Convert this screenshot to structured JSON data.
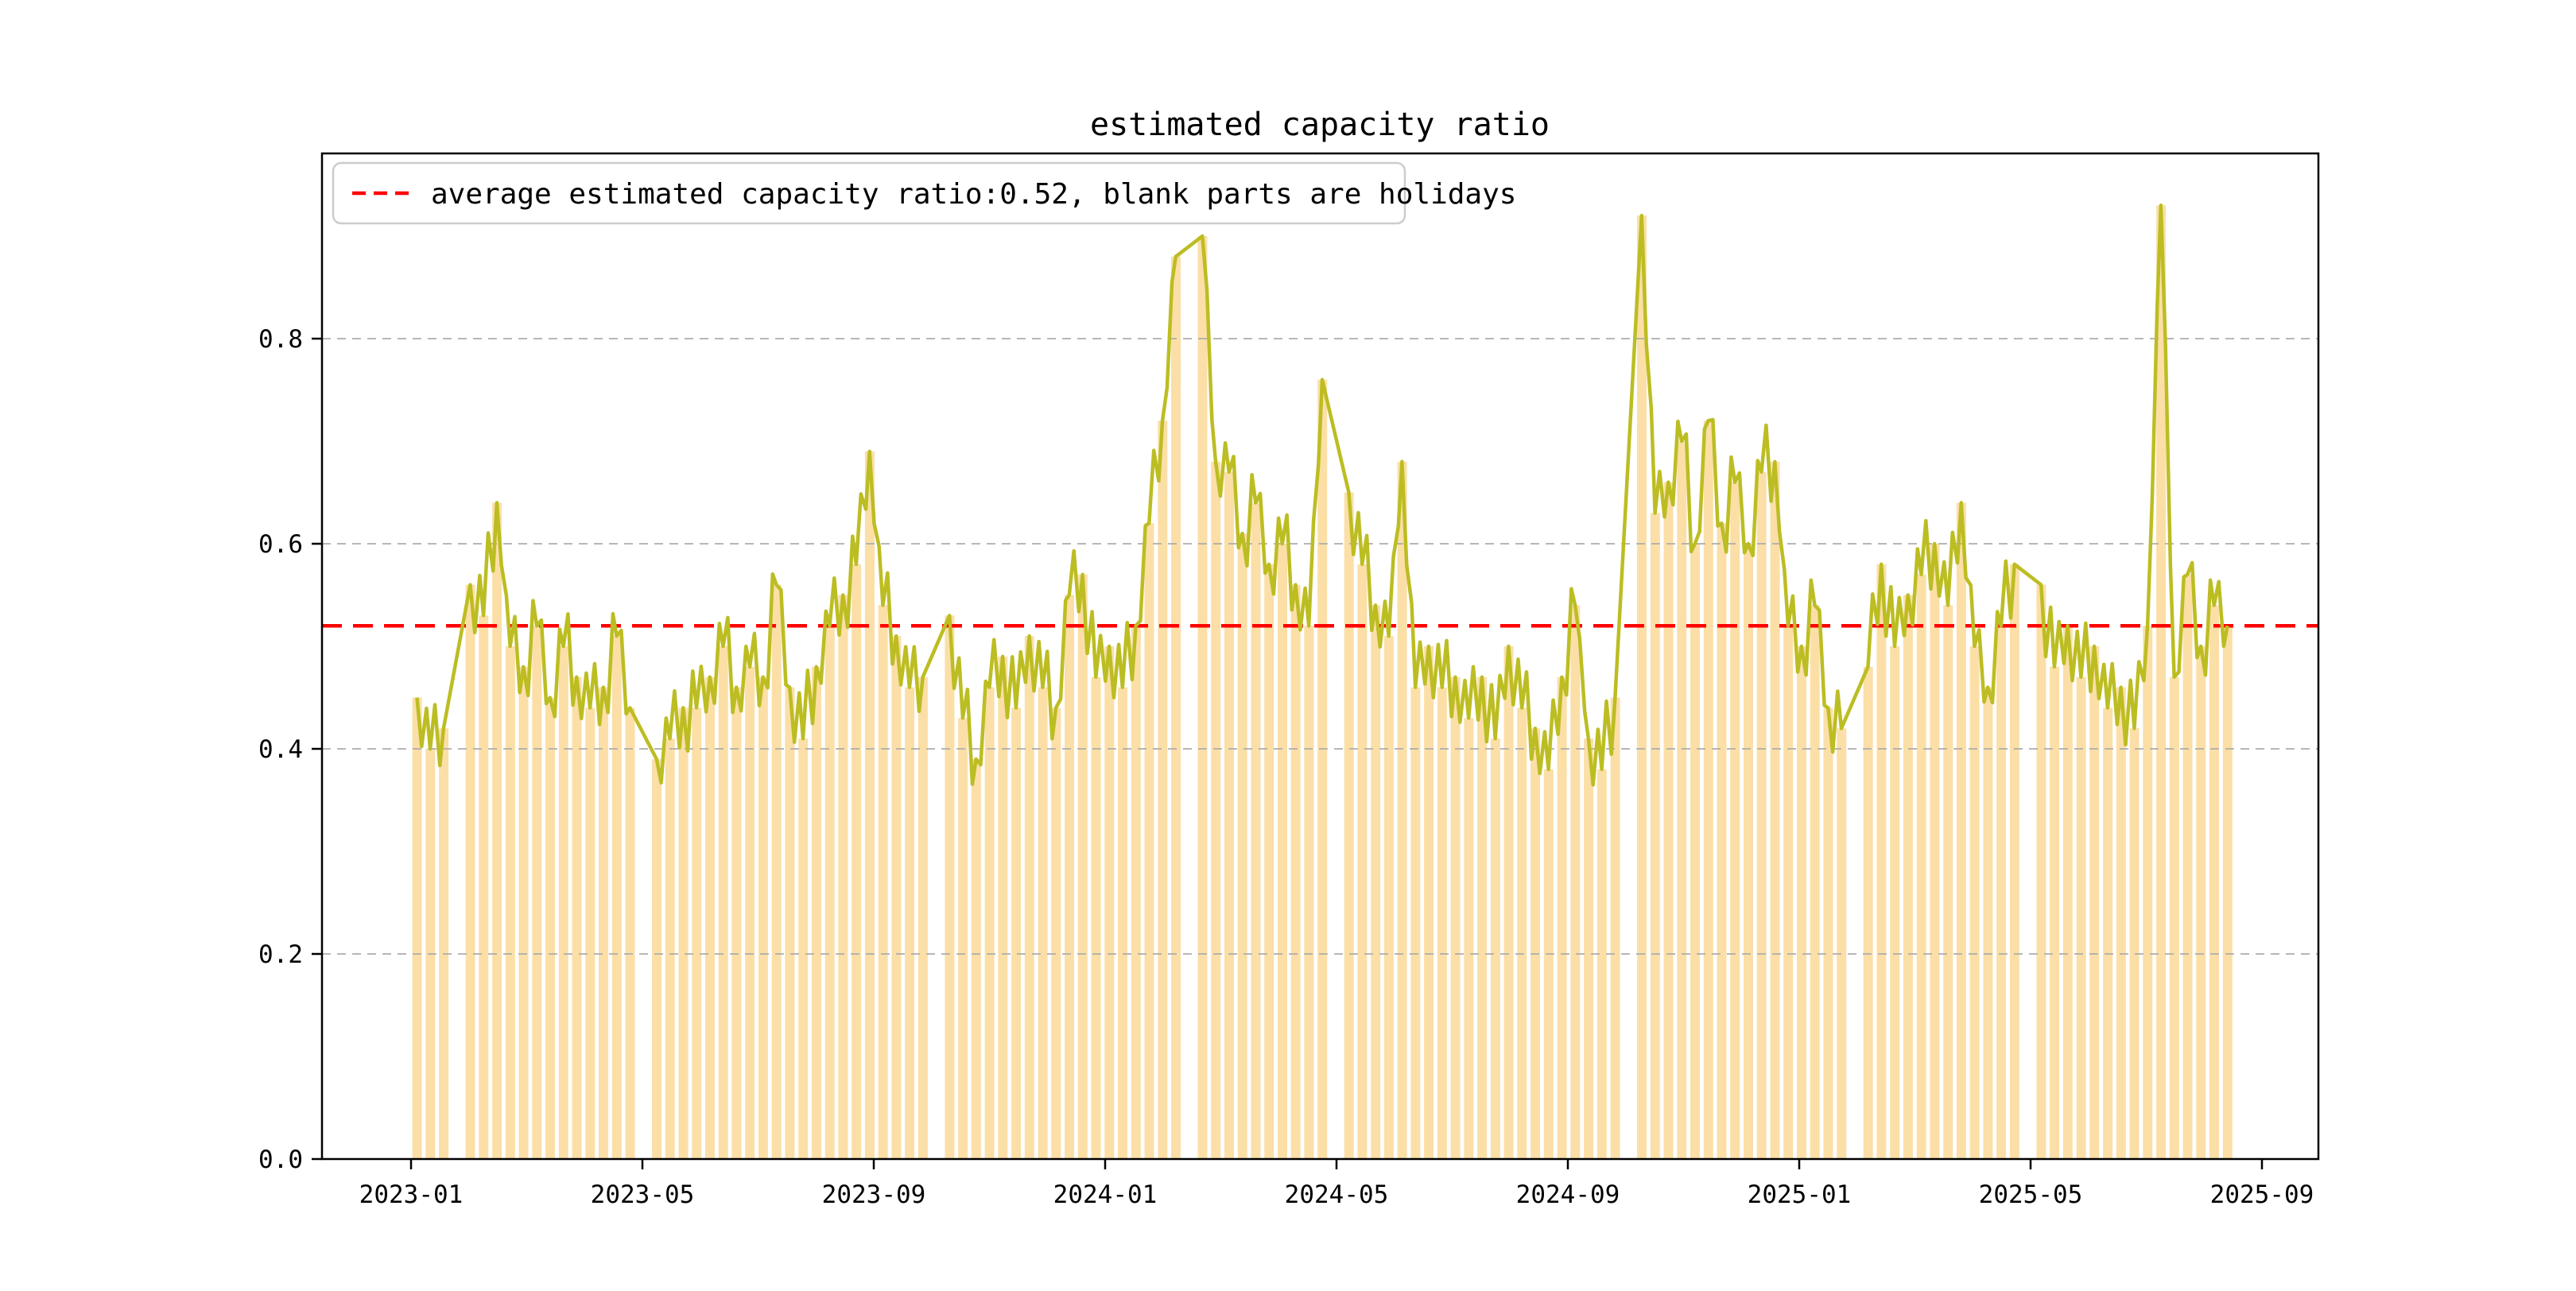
{
  "chart_data": {
    "type": "bar+line",
    "title": "estimated capacity ratio",
    "legend": {
      "label": "average estimated capacity ratio:0.52, blank parts are holidays",
      "sample_style": "dashed",
      "sample_color": "#ff0000"
    },
    "average_value": 0.52,
    "xlabel": "",
    "ylabel": "",
    "ylim": [
      0.0,
      0.98
    ],
    "yticks": [
      "0.0",
      "0.2",
      "0.4",
      "0.6",
      "0.8"
    ],
    "xticks": [
      "2023-01",
      "2023-05",
      "2023-09",
      "2024-01",
      "2024-05",
      "2024-09",
      "2025-01",
      "2025-05",
      "2025-09"
    ],
    "grid": "horizontal-dashed",
    "legend_position": "upper-left",
    "colors": {
      "bar": "#fbdfa7",
      "line": "#bcbd22",
      "average_line": "#ff0000",
      "grid": "#adadad",
      "axis": "#000000"
    },
    "weeks_note_holidays_are_null": true,
    "weeks": [
      [
        "2023-01-02",
        0.45
      ],
      [
        "2023-01-09",
        0.4
      ],
      [
        "2023-01-16",
        0.42
      ],
      [
        "2023-01-23",
        null
      ],
      [
        "2023-01-30",
        0.56
      ],
      [
        "2023-02-06",
        0.53
      ],
      [
        "2023-02-13",
        0.64
      ],
      [
        "2023-02-20",
        0.5
      ],
      [
        "2023-02-27",
        0.48
      ],
      [
        "2023-03-06",
        0.52
      ],
      [
        "2023-03-13",
        0.45
      ],
      [
        "2023-03-20",
        0.5
      ],
      [
        "2023-03-27",
        0.47
      ],
      [
        "2023-04-03",
        0.44
      ],
      [
        "2023-04-10",
        0.46
      ],
      [
        "2023-04-17",
        0.51
      ],
      [
        "2023-04-24",
        0.44
      ],
      [
        "2023-05-01",
        null
      ],
      [
        "2023-05-08",
        0.39
      ],
      [
        "2023-05-15",
        0.41
      ],
      [
        "2023-05-22",
        0.44
      ],
      [
        "2023-05-29",
        0.44
      ],
      [
        "2023-06-05",
        0.47
      ],
      [
        "2023-06-12",
        0.5
      ],
      [
        "2023-06-19",
        0.46
      ],
      [
        "2023-06-26",
        0.48
      ],
      [
        "2023-07-03",
        0.47
      ],
      [
        "2023-07-10",
        0.56
      ],
      [
        "2023-07-17",
        0.46
      ],
      [
        "2023-07-24",
        0.41
      ],
      [
        "2023-07-31",
        0.48
      ],
      [
        "2023-08-07",
        0.52
      ],
      [
        "2023-08-14",
        0.55
      ],
      [
        "2023-08-21",
        0.58
      ],
      [
        "2023-08-28",
        0.69
      ],
      [
        "2023-09-04",
        0.54
      ],
      [
        "2023-09-11",
        0.51
      ],
      [
        "2023-09-18",
        0.46
      ],
      [
        "2023-09-25",
        0.47
      ],
      [
        "2023-10-02",
        null
      ],
      [
        "2023-10-09",
        0.53
      ],
      [
        "2023-10-16",
        0.43
      ],
      [
        "2023-10-23",
        0.39
      ],
      [
        "2023-10-30",
        0.46
      ],
      [
        "2023-11-06",
        0.49
      ],
      [
        "2023-11-13",
        0.44
      ],
      [
        "2023-11-20",
        0.51
      ],
      [
        "2023-11-27",
        0.46
      ],
      [
        "2023-12-04",
        0.44
      ],
      [
        "2023-12-11",
        0.55
      ],
      [
        "2023-12-18",
        0.57
      ],
      [
        "2023-12-25",
        0.47
      ],
      [
        "2024-01-01",
        0.5
      ],
      [
        "2024-01-08",
        0.46
      ],
      [
        "2024-01-15",
        0.52
      ],
      [
        "2024-01-22",
        0.62
      ],
      [
        "2024-01-29",
        0.72
      ],
      [
        "2024-02-05",
        0.88
      ],
      [
        "2024-02-12",
        null
      ],
      [
        "2024-02-19",
        0.9
      ],
      [
        "2024-02-26",
        0.68
      ],
      [
        "2024-03-04",
        0.67
      ],
      [
        "2024-03-11",
        0.61
      ],
      [
        "2024-03-18",
        0.64
      ],
      [
        "2024-03-25",
        0.58
      ],
      [
        "2024-04-01",
        0.6
      ],
      [
        "2024-04-08",
        0.56
      ],
      [
        "2024-04-15",
        0.52
      ],
      [
        "2024-04-22",
        0.76
      ],
      [
        "2024-04-29",
        null
      ],
      [
        "2024-05-06",
        0.65
      ],
      [
        "2024-05-13",
        0.58
      ],
      [
        "2024-05-20",
        0.54
      ],
      [
        "2024-05-27",
        0.51
      ],
      [
        "2024-06-03",
        0.68
      ],
      [
        "2024-06-10",
        0.46
      ],
      [
        "2024-06-17",
        0.5
      ],
      [
        "2024-06-24",
        0.46
      ],
      [
        "2024-07-01",
        0.47
      ],
      [
        "2024-07-08",
        0.43
      ],
      [
        "2024-07-15",
        0.47
      ],
      [
        "2024-07-22",
        0.41
      ],
      [
        "2024-07-29",
        0.5
      ],
      [
        "2024-08-05",
        0.44
      ],
      [
        "2024-08-12",
        0.42
      ],
      [
        "2024-08-19",
        0.38
      ],
      [
        "2024-08-26",
        0.47
      ],
      [
        "2024-09-02",
        0.54
      ],
      [
        "2024-09-09",
        0.41
      ],
      [
        "2024-09-16",
        0.38
      ],
      [
        "2024-09-23",
        0.45
      ],
      [
        "2024-09-30",
        null
      ],
      [
        "2024-10-07",
        0.92
      ],
      [
        "2024-10-14",
        0.63
      ],
      [
        "2024-10-21",
        0.66
      ],
      [
        "2024-10-28",
        0.7
      ],
      [
        "2024-11-04",
        0.6
      ],
      [
        "2024-11-11",
        0.72
      ],
      [
        "2024-11-18",
        0.62
      ],
      [
        "2024-11-25",
        0.66
      ],
      [
        "2024-12-02",
        0.6
      ],
      [
        "2024-12-09",
        0.67
      ],
      [
        "2024-12-16",
        0.68
      ],
      [
        "2024-12-23",
        0.52
      ],
      [
        "2024-12-30",
        0.5
      ],
      [
        "2025-01-06",
        0.54
      ],
      [
        "2025-01-13",
        0.44
      ],
      [
        "2025-01-20",
        0.42
      ],
      [
        "2025-01-27",
        null
      ],
      [
        "2025-02-03",
        0.48
      ],
      [
        "2025-02-10",
        0.58
      ],
      [
        "2025-02-17",
        0.5
      ],
      [
        "2025-02-24",
        0.55
      ],
      [
        "2025-03-03",
        0.57
      ],
      [
        "2025-03-10",
        0.6
      ],
      [
        "2025-03-17",
        0.54
      ],
      [
        "2025-03-24",
        0.64
      ],
      [
        "2025-03-31",
        0.5
      ],
      [
        "2025-04-07",
        0.46
      ],
      [
        "2025-04-14",
        0.52
      ],
      [
        "2025-04-21",
        0.58
      ],
      [
        "2025-04-28",
        null
      ],
      [
        "2025-05-05",
        0.56
      ],
      [
        "2025-05-12",
        0.48
      ],
      [
        "2025-05-19",
        0.52
      ],
      [
        "2025-05-26",
        0.47
      ],
      [
        "2025-06-02",
        0.5
      ],
      [
        "2025-06-09",
        0.44
      ],
      [
        "2025-06-16",
        0.46
      ],
      [
        "2025-06-23",
        0.42
      ],
      [
        "2025-06-30",
        0.52
      ],
      [
        "2025-07-07",
        0.93
      ],
      [
        "2025-07-14",
        0.47
      ],
      [
        "2025-07-21",
        0.57
      ],
      [
        "2025-07-28",
        0.5
      ],
      [
        "2025-08-04",
        0.54
      ],
      [
        "2025-08-11",
        0.52
      ]
    ]
  }
}
